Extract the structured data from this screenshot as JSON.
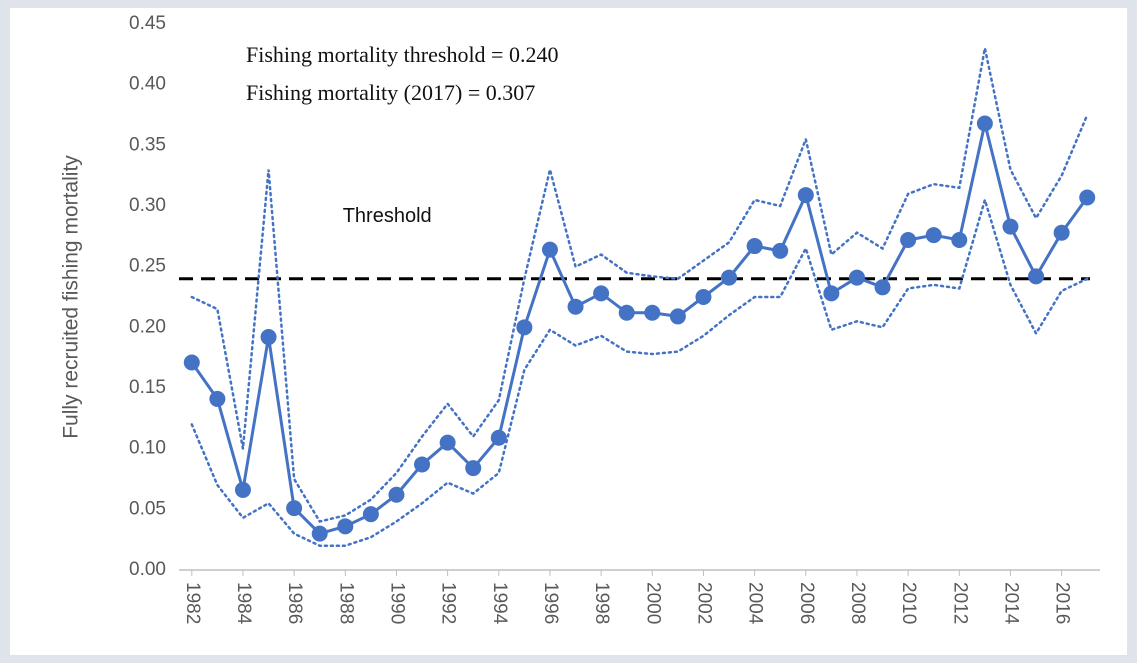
{
  "chart_data": {
    "type": "line",
    "y_label": "Fully recruited  fishing mortality",
    "annotations": [
      "Fishing mortality threshold = 0.240",
      "Fishing mortality (2017) = 0.307"
    ],
    "threshold": {
      "value": 0.24,
      "label": "Threshold",
      "color": "#000000"
    },
    "x": [
      1982,
      1983,
      1984,
      1985,
      1986,
      1987,
      1988,
      1989,
      1990,
      1991,
      1992,
      1993,
      1994,
      1995,
      1996,
      1997,
      1998,
      1999,
      2000,
      2001,
      2002,
      2003,
      2004,
      2005,
      2006,
      2007,
      2008,
      2009,
      2010,
      2011,
      2012,
      2013,
      2014,
      2015,
      2016,
      2017
    ],
    "series": [
      {
        "color": "#4472c4",
        "style": "solid",
        "markers": true,
        "values": [
          0.171,
          0.141,
          0.066,
          0.192,
          0.051,
          0.03,
          0.036,
          0.046,
          0.062,
          0.087,
          0.105,
          0.084,
          0.109,
          0.2,
          0.264,
          0.217,
          0.228,
          0.212,
          0.212,
          0.209,
          0.225,
          0.241,
          0.267,
          0.263,
          0.309,
          0.228,
          0.241,
          0.233,
          0.272,
          0.276,
          0.272,
          0.368,
          0.283,
          0.242,
          0.278,
          0.307
        ]
      },
      {
        "color": "#4472c4",
        "style": "dotted",
        "markers": false,
        "values": [
          0.225,
          0.215,
          0.1,
          0.33,
          0.075,
          0.04,
          0.045,
          0.058,
          0.08,
          0.11,
          0.137,
          0.11,
          0.14,
          0.24,
          0.33,
          0.25,
          0.26,
          0.245,
          0.242,
          0.24,
          0.255,
          0.27,
          0.305,
          0.3,
          0.355,
          0.26,
          0.278,
          0.265,
          0.31,
          0.318,
          0.315,
          0.43,
          0.33,
          0.29,
          0.325,
          0.375
        ]
      },
      {
        "color": "#4472c4",
        "style": "dotted",
        "markers": false,
        "values": [
          0.12,
          0.07,
          0.043,
          0.055,
          0.03,
          0.02,
          0.02,
          0.027,
          0.04,
          0.055,
          0.072,
          0.063,
          0.08,
          0.165,
          0.198,
          0.185,
          0.193,
          0.18,
          0.178,
          0.18,
          0.193,
          0.21,
          0.225,
          0.225,
          0.265,
          0.198,
          0.205,
          0.2,
          0.232,
          0.235,
          0.232,
          0.305,
          0.235,
          0.195,
          0.23,
          0.24
        ]
      }
    ],
    "xlim": [
      1981.5,
      2017.5
    ],
    "xticks": [
      1982,
      1984,
      1986,
      1988,
      1990,
      1992,
      1994,
      1996,
      1998,
      2000,
      2002,
      2004,
      2006,
      2008,
      2010,
      2012,
      2014,
      2016
    ],
    "ylim": [
      0,
      0.45
    ],
    "yticks": [
      {
        "value": 0,
        "label": "0.00"
      },
      {
        "value": 0.05,
        "label": "0.05"
      },
      {
        "value": 0.1,
        "label": "0.10"
      },
      {
        "value": 0.15,
        "label": "0.15"
      },
      {
        "value": 0.2,
        "label": "0.20"
      },
      {
        "value": 0.25,
        "label": "0.25"
      },
      {
        "value": 0.3,
        "label": "0.30"
      },
      {
        "value": 0.35,
        "label": "0.35"
      },
      {
        "value": 0.4,
        "label": "0.40"
      },
      {
        "value": 0.45,
        "label": "0.45"
      }
    ],
    "grid": false
  }
}
